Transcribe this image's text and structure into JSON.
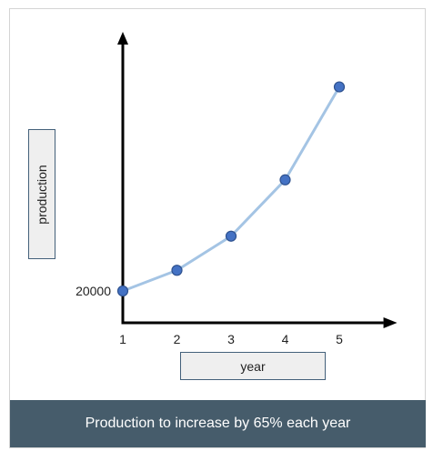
{
  "chart_data": {
    "type": "line",
    "x": [
      1,
      2,
      3,
      4,
      5
    ],
    "y": [
      20000,
      33000,
      54450,
      89843,
      148240
    ],
    "xlabel": "year",
    "ylabel": "production",
    "y_tick_labels": [
      {
        "value": 20000,
        "label": "20000"
      }
    ],
    "x_tick_labels": [
      "1",
      "2",
      "3",
      "4",
      "5"
    ],
    "xlim": [
      1,
      5.9
    ],
    "ylim": [
      0,
      160000
    ],
    "grid": false,
    "colors": {
      "line": "#a4c4e4",
      "marker_fill": "#4472c4",
      "marker_edge": "#2f528f",
      "axis": "#000000"
    }
  },
  "caption": "Production to increase by 65% each year"
}
